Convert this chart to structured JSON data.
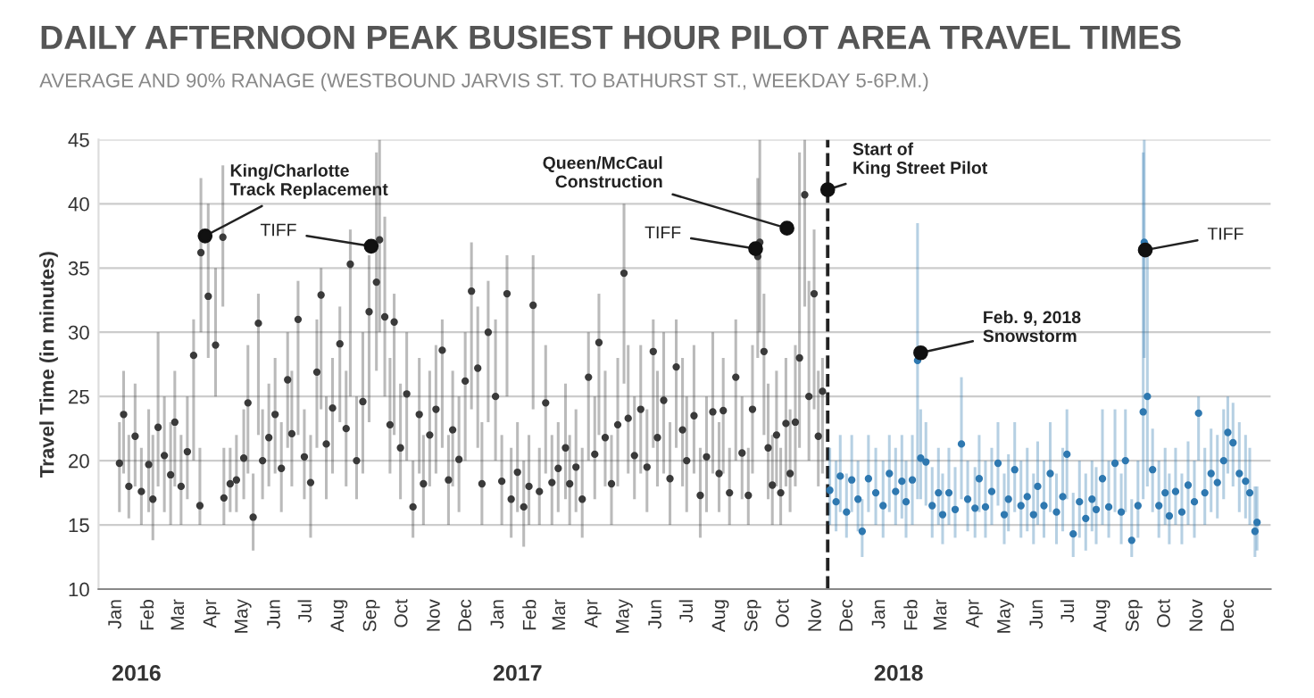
{
  "chart_data": {
    "type": "scatter",
    "title": "DAILY AFTERNOON PEAK BUSIEST HOUR PILOT AREA TRAVEL TIMES",
    "subtitle": "AVERAGE AND 90% RANAGE (WESTBOUND JARVIS ST. TO BATHURST ST., WEEKDAY 5-6P.M.)",
    "ylabel": "Travel Time (in minutes)",
    "xlim": [
      "2015-12-15",
      "2019-01-10"
    ],
    "ylim": [
      10,
      45
    ],
    "yticks": [
      10,
      15,
      20,
      25,
      30,
      35,
      40,
      45
    ],
    "xticks": [
      {
        "value": "2016-01-01",
        "label": "Jan"
      },
      {
        "value": "2016-02-01",
        "label": "Feb"
      },
      {
        "value": "2016-03-01",
        "label": "Mar"
      },
      {
        "value": "2016-04-01",
        "label": "Apr"
      },
      {
        "value": "2016-05-01",
        "label": "May"
      },
      {
        "value": "2016-06-01",
        "label": "Jun"
      },
      {
        "value": "2016-07-01",
        "label": "Jul"
      },
      {
        "value": "2016-08-01",
        "label": "Aug"
      },
      {
        "value": "2016-09-01",
        "label": "Sep"
      },
      {
        "value": "2016-10-01",
        "label": "Oct"
      },
      {
        "value": "2016-11-01",
        "label": "Nov"
      },
      {
        "value": "2016-12-01",
        "label": "Dec"
      },
      {
        "value": "2017-01-01",
        "label": "Jan"
      },
      {
        "value": "2017-02-01",
        "label": "Feb"
      },
      {
        "value": "2017-03-01",
        "label": "Mar"
      },
      {
        "value": "2017-04-01",
        "label": "Apr"
      },
      {
        "value": "2017-05-01",
        "label": "May"
      },
      {
        "value": "2017-06-01",
        "label": "Jun"
      },
      {
        "value": "2017-07-01",
        "label": "Jul"
      },
      {
        "value": "2017-08-01",
        "label": "Aug"
      },
      {
        "value": "2017-09-01",
        "label": "Sep"
      },
      {
        "value": "2017-10-01",
        "label": "Oct"
      },
      {
        "value": "2017-11-01",
        "label": "Nov"
      },
      {
        "value": "2017-12-01",
        "label": "Dec"
      },
      {
        "value": "2018-01-01",
        "label": "Jan"
      },
      {
        "value": "2018-02-01",
        "label": "Feb"
      },
      {
        "value": "2018-03-01",
        "label": "Mar"
      },
      {
        "value": "2018-04-01",
        "label": "Apr"
      },
      {
        "value": "2018-05-01",
        "label": "May"
      },
      {
        "value": "2018-06-01",
        "label": "Jun"
      },
      {
        "value": "2018-07-01",
        "label": "Jul"
      },
      {
        "value": "2018-08-01",
        "label": "Aug"
      },
      {
        "value": "2018-09-01",
        "label": "Sep"
      },
      {
        "value": "2018-10-01",
        "label": "Oct"
      },
      {
        "value": "2018-11-01",
        "label": "Nov"
      },
      {
        "value": "2018-12-01",
        "label": "Dec"
      }
    ],
    "grid": "y",
    "marker": "circle",
    "ref_lines": [
      {
        "axis": "x",
        "value": "2017-11-12",
        "color": "#222222",
        "line_style": "dashed"
      }
    ],
    "annotations": [
      {
        "text": "King/Charlotte\nTrack Replacement",
        "x": "2016-03-26",
        "y": 37.5
      },
      {
        "text": "TIFF",
        "x": "2016-09-01",
        "y": 36.7
      },
      {
        "text": "Queen/McCaul\nConstruction",
        "x": "2017-10-04",
        "y": 38.1
      },
      {
        "text": "TIFF",
        "x": "2017-09-04",
        "y": 36.5
      },
      {
        "text": "Start of\nKing Street Pilot",
        "x": "2017-11-12",
        "y": 41.1
      },
      {
        "text": "Feb. 9, 2018\nSnowstorm",
        "x": "2018-02-09",
        "y": 28.4
      },
      {
        "text": "TIFF",
        "x": "2018-09-12",
        "y": 36.4
      },
      "2016",
      "2017",
      "2018"
    ],
    "series": [
      {
        "color": "#3a3a3a",
        "x": [
          "2016-01-04",
          "2016-01-08",
          "2016-01-13",
          "2016-01-19",
          "2016-01-25",
          "2016-02-01",
          "2016-02-05",
          "2016-02-10",
          "2016-02-16",
          "2016-02-22",
          "2016-02-26",
          "2016-03-03",
          "2016-03-09",
          "2016-03-15",
          "2016-03-21",
          "2016-03-22",
          "2016-03-29",
          "2016-04-05",
          "2016-04-12",
          "2016-04-13",
          "2016-04-19",
          "2016-04-25",
          "2016-05-02",
          "2016-05-06",
          "2016-05-11",
          "2016-05-16",
          "2016-05-20",
          "2016-05-26",
          "2016-06-01",
          "2016-06-07",
          "2016-06-13",
          "2016-06-17",
          "2016-06-23",
          "2016-06-29",
          "2016-07-05",
          "2016-07-11",
          "2016-07-15",
          "2016-07-20",
          "2016-07-26",
          "2016-08-02",
          "2016-08-08",
          "2016-08-12",
          "2016-08-18",
          "2016-08-24",
          "2016-08-30",
          "2016-09-06",
          "2016-09-09",
          "2016-09-14",
          "2016-09-19",
          "2016-09-23",
          "2016-09-29",
          "2016-10-05",
          "2016-10-11",
          "2016-10-17",
          "2016-10-21",
          "2016-10-27",
          "2016-11-02",
          "2016-11-08",
          "2016-11-14",
          "2016-11-18",
          "2016-11-24",
          "2016-11-30",
          "2016-12-06",
          "2016-12-12",
          "2016-12-16",
          "2016-12-22",
          "2016-12-29",
          "2017-01-04",
          "2017-01-09",
          "2017-01-13",
          "2017-01-19",
          "2017-01-25",
          "2017-01-30",
          "2017-02-03",
          "2017-02-09",
          "2017-02-15",
          "2017-02-21",
          "2017-02-27",
          "2017-03-06",
          "2017-03-10",
          "2017-03-16",
          "2017-03-22",
          "2017-03-28",
          "2017-04-03",
          "2017-04-07",
          "2017-04-13",
          "2017-04-19",
          "2017-04-25",
          "2017-05-01",
          "2017-05-05",
          "2017-05-11",
          "2017-05-17",
          "2017-05-23",
          "2017-05-29",
          "2017-06-02",
          "2017-06-08",
          "2017-06-14",
          "2017-06-20",
          "2017-06-26",
          "2017-06-30",
          "2017-07-07",
          "2017-07-13",
          "2017-07-19",
          "2017-07-25",
          "2017-07-31",
          "2017-08-04",
          "2017-08-10",
          "2017-08-16",
          "2017-08-22",
          "2017-08-28",
          "2017-09-01",
          "2017-09-06",
          "2017-09-08",
          "2017-09-12",
          "2017-09-16",
          "2017-09-20",
          "2017-09-24",
          "2017-09-28",
          "2017-10-03",
          "2017-10-07",
          "2017-10-12",
          "2017-10-16",
          "2017-10-21",
          "2017-10-25",
          "2017-10-30",
          "2017-11-03",
          "2017-11-07"
        ],
        "values": [
          19.8,
          23.6,
          18.0,
          21.9,
          17.6,
          19.7,
          17.0,
          22.6,
          20.4,
          18.9,
          23.0,
          18.0,
          20.7,
          28.2,
          16.5,
          36.2,
          32.8,
          29.0,
          37.4,
          17.1,
          18.2,
          18.5,
          20.2,
          24.5,
          15.6,
          30.7,
          20.0,
          21.8,
          23.6,
          19.4,
          26.3,
          22.1,
          31.0,
          20.3,
          18.3,
          26.9,
          32.9,
          21.3,
          24.1,
          29.1,
          22.5,
          35.3,
          20.0,
          24.6,
          31.6,
          33.9,
          37.2,
          31.2,
          22.8,
          30.8,
          21.0,
          25.2,
          16.4,
          23.6,
          18.2,
          22.0,
          24.0,
          28.6,
          18.5,
          22.4,
          20.1,
          26.2,
          33.2,
          27.2,
          18.2,
          30.0,
          25.0,
          18.4,
          33.0,
          17.0,
          19.1,
          16.4,
          18.0,
          32.1,
          17.6,
          24.5,
          18.3,
          19.4,
          21.0,
          18.2,
          19.5,
          17.0,
          26.5,
          20.5,
          29.2,
          21.8,
          18.2,
          22.8,
          34.6,
          23.3,
          20.4,
          24.0,
          19.5,
          28.5,
          21.8,
          24.7,
          18.6,
          27.3,
          22.4,
          20.0,
          23.5,
          17.3,
          20.3,
          23.8,
          19.0,
          23.9,
          17.5,
          26.5,
          20.6,
          17.3,
          24.0,
          35.9,
          37.0,
          28.5,
          21.0,
          18.1,
          22.0,
          17.5,
          22.9,
          19.0,
          23.0,
          28.0,
          40.7,
          25.0,
          33.0,
          21.9,
          25.4
        ],
        "errors": [
          [
            16,
            23
          ],
          [
            19,
            27
          ],
          [
            15.5,
            22
          ],
          [
            18,
            26
          ],
          [
            15,
            21
          ],
          [
            16,
            24
          ],
          [
            13.8,
            22
          ],
          [
            18,
            30
          ],
          [
            16,
            25
          ],
          [
            15,
            23
          ],
          [
            18,
            27
          ],
          [
            15,
            22
          ],
          [
            17,
            25
          ],
          [
            20,
            31
          ],
          [
            15,
            21
          ],
          [
            30,
            42
          ],
          [
            28,
            40
          ],
          [
            25,
            35
          ],
          [
            32,
            43
          ],
          [
            15,
            21
          ],
          [
            16,
            21
          ],
          [
            16,
            22
          ],
          [
            17,
            24
          ],
          [
            19,
            29
          ],
          [
            13,
            19
          ],
          [
            22,
            33
          ],
          [
            17,
            24
          ],
          [
            18,
            26
          ],
          [
            19,
            28
          ],
          [
            16,
            23
          ],
          [
            21,
            30
          ],
          [
            18,
            27
          ],
          [
            22,
            34
          ],
          [
            17,
            24
          ],
          [
            14,
            22
          ],
          [
            21,
            31
          ],
          [
            24,
            35
          ],
          [
            17,
            25
          ],
          [
            19,
            28
          ],
          [
            23,
            32
          ],
          [
            18,
            27
          ],
          [
            25,
            38
          ],
          [
            17,
            25
          ],
          [
            19,
            30
          ],
          [
            23,
            36
          ],
          [
            27,
            44
          ],
          [
            30,
            45
          ],
          [
            25,
            39
          ],
          [
            19,
            28
          ],
          [
            22,
            33
          ],
          [
            17,
            26
          ],
          [
            20,
            30
          ],
          [
            14,
            20
          ],
          [
            19,
            28
          ],
          [
            15,
            22
          ],
          [
            18,
            27
          ],
          [
            19,
            29
          ],
          [
            21,
            31
          ],
          [
            15,
            22
          ],
          [
            18,
            27
          ],
          [
            16,
            25
          ],
          [
            20,
            30
          ],
          [
            24,
            37
          ],
          [
            21,
            32
          ],
          [
            15,
            23
          ],
          [
            23,
            34
          ],
          [
            20,
            31
          ],
          [
            15,
            22
          ],
          [
            25,
            36
          ],
          [
            14,
            21
          ],
          [
            16,
            23
          ],
          [
            13.3,
            20
          ],
          [
            15,
            22
          ],
          [
            24,
            36
          ],
          [
            15,
            21
          ],
          [
            19,
            29
          ],
          [
            15,
            22
          ],
          [
            16,
            23
          ],
          [
            17,
            26
          ],
          [
            15,
            22
          ],
          [
            16,
            24
          ],
          [
            14,
            21
          ],
          [
            20,
            30
          ],
          [
            17,
            25
          ],
          [
            22,
            33
          ],
          [
            18,
            27
          ],
          [
            15,
            22
          ],
          [
            18,
            28
          ],
          [
            26,
            40
          ],
          [
            19,
            29
          ],
          [
            17,
            25
          ],
          [
            19,
            29
          ],
          [
            16,
            24
          ],
          [
            21,
            31
          ],
          [
            18,
            27
          ],
          [
            19,
            30
          ],
          [
            15,
            23
          ],
          [
            21,
            31
          ],
          [
            18,
            28
          ],
          [
            16,
            25
          ],
          [
            19,
            29
          ],
          [
            14,
            21
          ],
          [
            16,
            25
          ],
          [
            19,
            30
          ],
          [
            16,
            23
          ],
          [
            19,
            28
          ],
          [
            15,
            21
          ],
          [
            20,
            31
          ],
          [
            17,
            25
          ],
          [
            15,
            21
          ],
          [
            19,
            29
          ],
          [
            28,
            42
          ],
          [
            30,
            45
          ],
          [
            22,
            33
          ],
          [
            17,
            26
          ],
          [
            15,
            22
          ],
          [
            18,
            27
          ],
          [
            15,
            21
          ],
          [
            18,
            28
          ],
          [
            16,
            24
          ],
          [
            18,
            29
          ],
          [
            21,
            44
          ],
          [
            32,
            45
          ],
          [
            20,
            34
          ],
          [
            24,
            38
          ],
          [
            18,
            27
          ],
          [
            19,
            28
          ]
        ]
      },
      {
        "color": "#2e78b0",
        "x": [
          "2017-11-14",
          "2017-11-20",
          "2017-11-24",
          "2017-11-30",
          "2017-12-05",
          "2017-12-11",
          "2017-12-15",
          "2017-12-21",
          "2017-12-28",
          "2018-01-04",
          "2018-01-10",
          "2018-01-16",
          "2018-01-22",
          "2018-01-26",
          "2018-02-01",
          "2018-02-06",
          "2018-02-09",
          "2018-02-14",
          "2018-02-20",
          "2018-02-26",
          "2018-03-02",
          "2018-03-08",
          "2018-03-14",
          "2018-03-20",
          "2018-03-26",
          "2018-04-02",
          "2018-04-06",
          "2018-04-12",
          "2018-04-18",
          "2018-04-24",
          "2018-04-30",
          "2018-05-04",
          "2018-05-10",
          "2018-05-16",
          "2018-05-22",
          "2018-05-28",
          "2018-06-01",
          "2018-06-07",
          "2018-06-13",
          "2018-06-19",
          "2018-06-25",
          "2018-06-29",
          "2018-07-05",
          "2018-07-11",
          "2018-07-17",
          "2018-07-23",
          "2018-07-27",
          "2018-08-02",
          "2018-08-08",
          "2018-08-14",
          "2018-08-20",
          "2018-08-24",
          "2018-08-30",
          "2018-09-05",
          "2018-09-10",
          "2018-09-11",
          "2018-09-14",
          "2018-09-19",
          "2018-09-25",
          "2018-10-01",
          "2018-10-05",
          "2018-10-11",
          "2018-10-17",
          "2018-10-23",
          "2018-10-29",
          "2018-11-02",
          "2018-11-08",
          "2018-11-14",
          "2018-11-20",
          "2018-11-26",
          "2018-11-30",
          "2018-12-05",
          "2018-12-11",
          "2018-12-17",
          "2018-12-21",
          "2018-12-26",
          "2018-12-28"
        ],
        "values": [
          17.7,
          16.8,
          18.8,
          16.0,
          18.5,
          17.0,
          14.5,
          18.6,
          17.5,
          16.5,
          19.0,
          17.6,
          18.4,
          16.8,
          18.5,
          27.8,
          20.2,
          19.9,
          16.5,
          17.5,
          15.8,
          17.5,
          16.2,
          21.3,
          17.0,
          16.3,
          18.6,
          16.4,
          17.6,
          19.8,
          15.8,
          17.0,
          19.3,
          16.5,
          17.2,
          15.8,
          18.0,
          16.5,
          19.0,
          16.0,
          17.2,
          20.5,
          14.3,
          16.8,
          15.5,
          17.0,
          16.2,
          18.6,
          16.4,
          19.8,
          16.0,
          20.0,
          13.8,
          16.5,
          23.8,
          37.0,
          25.0,
          19.3,
          16.5,
          17.5,
          15.7,
          17.6,
          16.0,
          18.1,
          16.8,
          23.7,
          17.5,
          19.0,
          18.3,
          20.0,
          22.2,
          21.4,
          19.0,
          18.4,
          17.5,
          14.5,
          15.2
        ],
        "errors": [
          [
            15,
            21
          ],
          [
            14.5,
            20
          ],
          [
            16,
            22
          ],
          [
            14,
            19
          ],
          [
            16,
            22
          ],
          [
            14.5,
            20
          ],
          [
            12.5,
            17
          ],
          [
            16,
            22
          ],
          [
            15,
            21
          ],
          [
            14,
            20
          ],
          [
            16,
            22
          ],
          [
            15,
            21
          ],
          [
            15.5,
            22
          ],
          [
            14,
            20
          ],
          [
            15,
            22
          ],
          [
            17,
            38.5
          ],
          [
            17,
            24
          ],
          [
            16.5,
            23
          ],
          [
            14,
            19.5
          ],
          [
            15,
            21
          ],
          [
            13.5,
            19
          ],
          [
            15,
            21
          ],
          [
            14,
            19.5
          ],
          [
            17,
            26.5
          ],
          [
            14.5,
            20
          ],
          [
            14,
            19.5
          ],
          [
            16,
            22
          ],
          [
            14,
            20
          ],
          [
            15,
            21
          ],
          [
            16.5,
            23
          ],
          [
            13.5,
            19
          ],
          [
            14.5,
            20.5
          ],
          [
            16,
            23
          ],
          [
            14,
            20
          ],
          [
            14.5,
            21
          ],
          [
            13.5,
            19
          ],
          [
            15,
            21.5
          ],
          [
            14,
            20
          ],
          [
            16,
            23
          ],
          [
            13.5,
            19
          ],
          [
            14.5,
            21
          ],
          [
            17,
            24
          ],
          [
            12.5,
            17.5
          ],
          [
            14,
            20
          ],
          [
            13,
            19
          ],
          [
            14.5,
            20
          ],
          [
            13.5,
            19.5
          ],
          [
            15,
            24
          ],
          [
            14,
            20
          ],
          [
            16,
            24
          ],
          [
            13.5,
            19
          ],
          [
            16,
            24
          ],
          [
            12.5,
            17
          ],
          [
            14,
            20
          ],
          [
            17,
            44
          ],
          [
            28,
            45
          ],
          [
            18,
            37
          ],
          [
            16,
            22.5
          ],
          [
            14,
            20
          ],
          [
            15,
            21
          ],
          [
            13.5,
            19
          ],
          [
            15,
            21
          ],
          [
            13.5,
            19
          ],
          [
            15,
            21.5
          ],
          [
            14,
            20
          ],
          [
            20,
            25
          ],
          [
            15,
            21
          ],
          [
            16,
            22.5
          ],
          [
            15.5,
            22
          ],
          [
            17,
            24
          ],
          [
            19,
            25
          ],
          [
            18,
            24.5
          ],
          [
            16,
            23
          ],
          [
            15.5,
            22
          ],
          [
            15,
            21
          ],
          [
            12.5,
            18
          ],
          [
            13,
            18
          ]
        ]
      }
    ]
  }
}
